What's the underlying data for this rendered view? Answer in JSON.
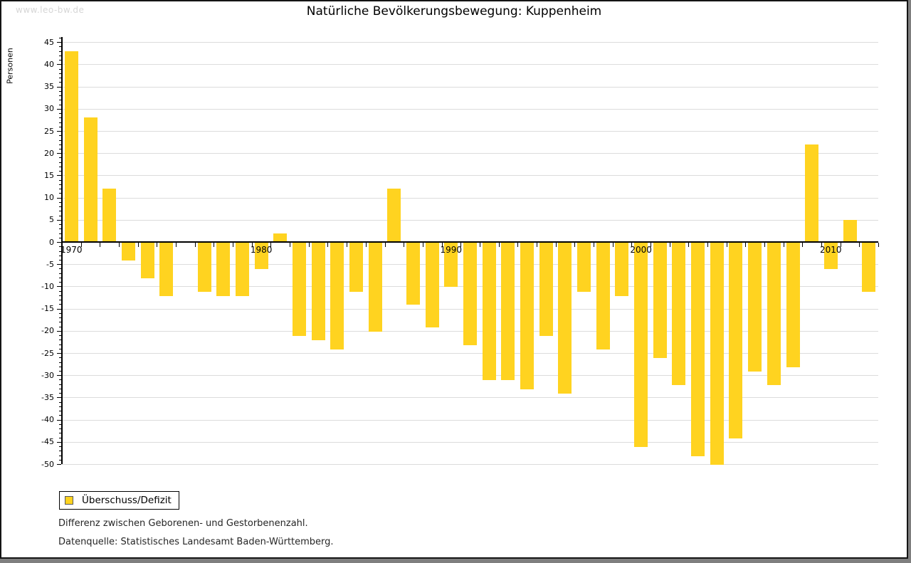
{
  "watermark": "www.leo-bw.de",
  "header": {
    "title": "Natürliche Bevölkerungsbewegung: Kuppenheim"
  },
  "legend": {
    "label": "Überschuss/Defizit",
    "swatch_color": "#ffd320"
  },
  "notes": [
    "Differenz zwischen Geborenen- und Gestorbenenzahl.",
    "Datenquelle: Statistisches Landesamt Baden-Württemberg."
  ],
  "chart_data": {
    "type": "bar",
    "title": "Natürliche Bevölkerungsbewegung: Kuppenheim",
    "xlabel": "",
    "ylabel": "Personen",
    "series_name": "Überschuss/Defizit",
    "categories": [
      "1970",
      "1971",
      "1972",
      "1973",
      "1974",
      "1975",
      "1976",
      "1977",
      "1978",
      "1979",
      "1980",
      "1981",
      "1982",
      "1983",
      "1984",
      "1985",
      "1986",
      "1987",
      "1988",
      "1989",
      "1990",
      "1991",
      "1992",
      "1993",
      "1994",
      "1995",
      "1996",
      "1997",
      "1998",
      "1999",
      "2000",
      "2001",
      "2002",
      "2003",
      "2004",
      "2005",
      "2006",
      "2007",
      "2008",
      "2009",
      "2010",
      "2011",
      "2012"
    ],
    "values": [
      43,
      28,
      12,
      -4,
      -8,
      -12,
      0,
      -11,
      -12,
      -12,
      -6,
      2,
      -21,
      -22,
      -24,
      -11,
      -20,
      12,
      -14,
      -19,
      -10,
      -23,
      -31,
      -31,
      -33,
      -21,
      -34,
      -11,
      -24,
      -12,
      -46,
      -26,
      -32,
      -48,
      -50,
      -44,
      -29,
      -32,
      -28,
      22,
      -6,
      5,
      -11
    ],
    "ylim": [
      -50,
      45
    ],
    "ytick_step": 5,
    "ytick_labels": [
      "45",
      "40",
      "35",
      "30",
      "25",
      "20",
      "15",
      "10",
      "5",
      "0",
      "-5",
      "-10",
      "-15",
      "-20",
      "-25",
      "-30",
      "-35",
      "-40",
      "-45",
      "-50"
    ],
    "xtick_labels": [
      "1970",
      "1980",
      "1990",
      "2000",
      "2010"
    ],
    "grid": true,
    "legend_position": "bottom-left",
    "bar_color": "#ffd320",
    "grid_color": "#dcdcdc",
    "axis_color": "#000000"
  }
}
